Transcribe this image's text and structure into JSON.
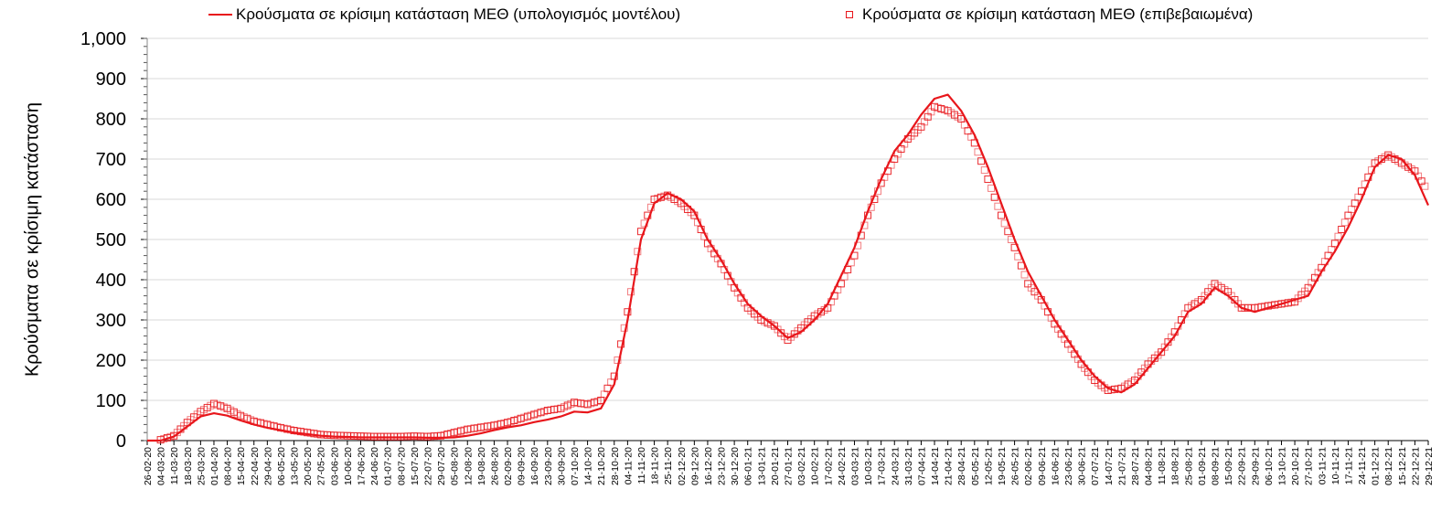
{
  "chart_data": {
    "type": "line",
    "title": "",
    "xlabel": "",
    "ylabel": "Κρούσματα σε κρίσιμη κατάσταση",
    "ylim": [
      0,
      1000
    ],
    "yticks": [
      0,
      100,
      200,
      300,
      400,
      500,
      600,
      700,
      800,
      900,
      1000
    ],
    "ytick_labels": [
      "0",
      "100",
      "200",
      "300",
      "400",
      "500",
      "600",
      "700",
      "800",
      "900",
      "1,000"
    ],
    "grid": true,
    "legend_position": "top",
    "colors": {
      "series": "#e8161b",
      "grid": "#d9d9d9",
      "axis": "#000000"
    },
    "categories": [
      "26-02-20",
      "04-03-20",
      "11-03-20",
      "18-03-20",
      "25-03-20",
      "01-04-20",
      "08-04-20",
      "15-04-20",
      "22-04-20",
      "29-04-20",
      "06-05-20",
      "13-05-20",
      "20-05-20",
      "27-05-20",
      "03-06-20",
      "10-06-20",
      "17-06-20",
      "24-06-20",
      "01-07-20",
      "08-07-20",
      "15-07-20",
      "22-07-20",
      "29-07-20",
      "05-08-20",
      "12-08-20",
      "19-08-20",
      "26-08-20",
      "02-09-20",
      "09-09-20",
      "16-09-20",
      "23-09-20",
      "30-09-20",
      "07-10-20",
      "14-10-20",
      "21-10-20",
      "28-10-20",
      "04-11-20",
      "11-11-20",
      "18-11-20",
      "25-11-20",
      "02-12-20",
      "09-12-20",
      "16-12-20",
      "23-12-20",
      "30-12-20",
      "06-01-21",
      "13-01-21",
      "20-01-21",
      "27-01-21",
      "03-02-21",
      "10-02-21",
      "17-02-21",
      "24-02-21",
      "03-03-21",
      "10-03-21",
      "17-03-21",
      "24-03-21",
      "31-03-21",
      "07-04-21",
      "14-04-21",
      "21-04-21",
      "28-04-21",
      "05-05-21",
      "12-05-21",
      "19-05-21",
      "26-05-21",
      "02-06-21",
      "09-06-21",
      "16-06-21",
      "23-06-21",
      "30-06-21",
      "07-07-21",
      "14-07-21",
      "21-07-21",
      "28-07-21",
      "04-08-21",
      "11-08-21",
      "18-08-21",
      "25-08-21",
      "01-09-21",
      "08-09-21",
      "15-09-21",
      "22-09-21",
      "29-09-21",
      "06-10-21",
      "13-10-21",
      "20-10-21",
      "27-10-21",
      "03-11-21",
      "10-11-21",
      "17-11-21",
      "24-11-21",
      "01-12-21",
      "08-12-21",
      "15-12-21",
      "22-12-21",
      "29-12-21"
    ],
    "series": [
      {
        "name": "Κρούσματα σε κρίσιμη κατάσταση ΜΕΘ (υπολογισμός μοντέλου)",
        "style": "line",
        "values": [
          0,
          0,
          10,
          35,
          60,
          68,
          62,
          50,
          40,
          32,
          26,
          20,
          16,
          12,
          10,
          9,
          8,
          8,
          8,
          8,
          8,
          7,
          7,
          8,
          12,
          18,
          26,
          33,
          38,
          46,
          52,
          60,
          72,
          70,
          80,
          140,
          300,
          500,
          590,
          615,
          600,
          570,
          500,
          450,
          390,
          340,
          310,
          285,
          255,
          270,
          300,
          340,
          410,
          480,
          570,
          650,
          720,
          760,
          810,
          850,
          860,
          820,
          760,
          680,
          590,
          500,
          420,
          360,
          300,
          250,
          200,
          160,
          130,
          120,
          140,
          180,
          220,
          260,
          320,
          340,
          380,
          360,
          330,
          320,
          330,
          340,
          350,
          360,
          420,
          470,
          530,
          600,
          680,
          710,
          700,
          660,
          585
        ]
      },
      {
        "name": "Κρούσματα σε κρίσιμη κατάσταση ΜΕΘ (επιβεβαιωμένα)",
        "style": "markers",
        "marker": "hollow-square",
        "values": [
          null,
          2,
          12,
          45,
          72,
          92,
          80,
          62,
          48,
          40,
          32,
          25,
          20,
          15,
          13,
          12,
          11,
          10,
          10,
          10,
          11,
          10,
          12,
          20,
          28,
          33,
          38,
          45,
          55,
          65,
          75,
          80,
          95,
          90,
          100,
          160,
          320,
          520,
          600,
          610,
          590,
          560,
          490,
          440,
          380,
          330,
          300,
          285,
          250,
          280,
          310,
          330,
          390,
          460,
          560,
          640,
          700,
          750,
          780,
          830,
          820,
          800,
          740,
          650,
          560,
          480,
          390,
          350,
          290,
          240,
          190,
          150,
          125,
          130,
          150,
          190,
          220,
          270,
          330,
          350,
          390,
          370,
          330,
          330,
          335,
          340,
          345,
          380,
          430,
          490,
          560,
          620,
          690,
          710,
          690,
          670,
          620
        ]
      }
    ]
  },
  "legend": {
    "items": [
      {
        "label": "Κρούσματα σε κρίσιμη κατάσταση ΜΕΘ (υπολογισμός μοντέλου)",
        "symbol": "line"
      },
      {
        "label": "Κρούσματα σε κρίσιμη κατάσταση ΜΕΘ (επιβεβαιωμένα)",
        "symbol": "hollow-square"
      }
    ]
  },
  "axes": {
    "y_title": "Κρούσματα σε κρίσιμη κατάσταση"
  }
}
